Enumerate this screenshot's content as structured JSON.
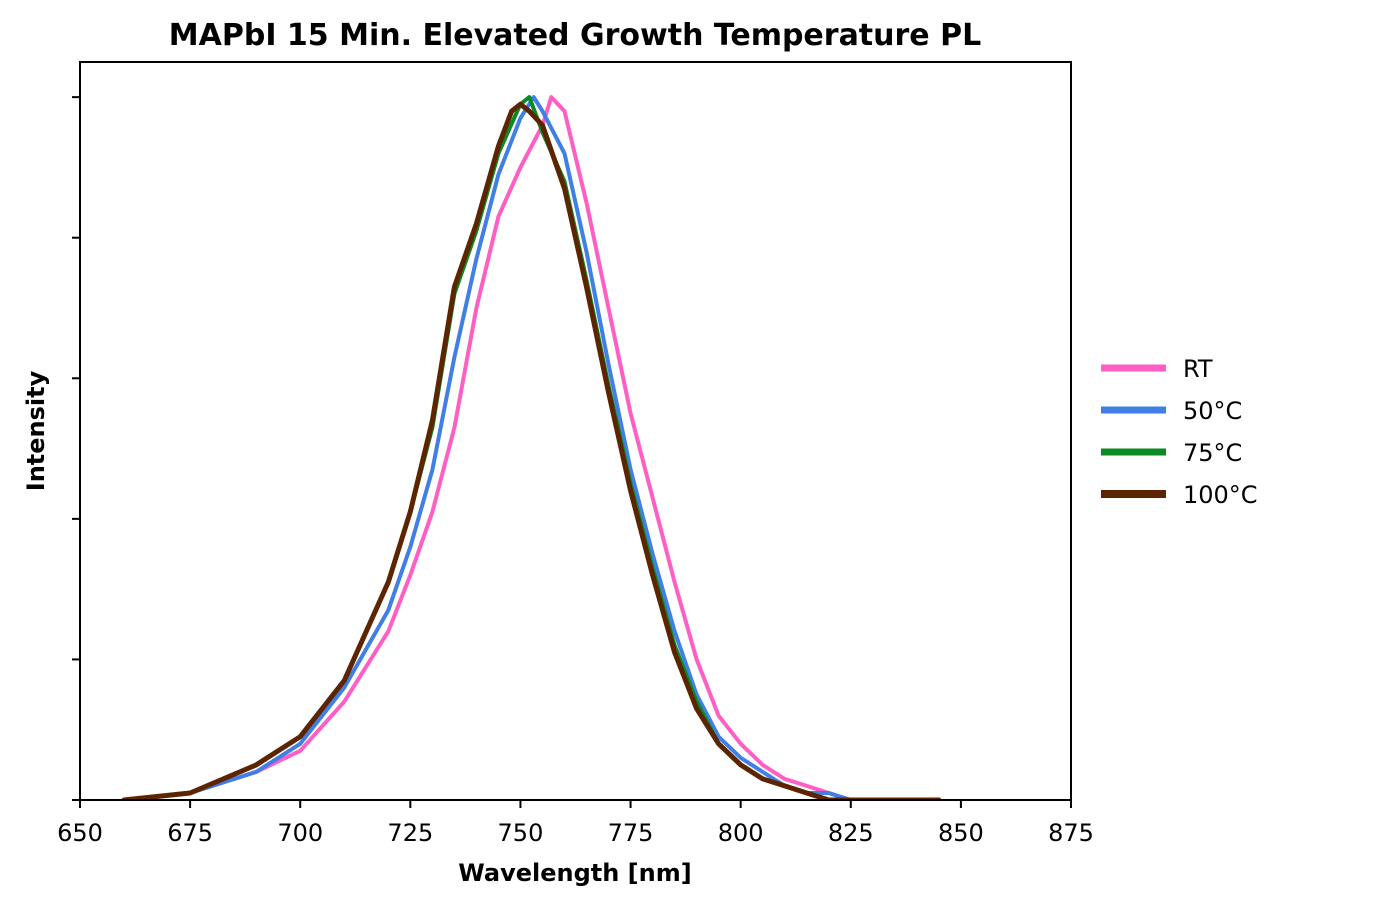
{
  "chart_data": {
    "type": "line",
    "title": "MAPbI 15 Min. Elevated Growth Temperature PL",
    "xlabel": "Wavelength [nm]",
    "ylabel": "Intensity",
    "xlim": [
      650,
      875
    ],
    "ylim": [
      0,
      1.05
    ],
    "x_ticks": [
      650,
      675,
      700,
      725,
      750,
      775,
      800,
      825,
      850,
      875
    ],
    "y_ticks": [
      0,
      0.2,
      0.4,
      0.6,
      0.8,
      1.0
    ],
    "y_tick_labels_shown": false,
    "grid": false,
    "legend": "outside-right",
    "series": [
      {
        "name": "RT",
        "color": "#ff5fc4",
        "x": [
          660,
          675,
          690,
          700,
          710,
          720,
          725,
          730,
          735,
          740,
          745,
          750,
          755,
          757,
          760,
          765,
          770,
          775,
          780,
          785,
          790,
          795,
          800,
          805,
          810,
          815,
          820,
          825,
          835,
          845
        ],
        "y": [
          0.0,
          0.01,
          0.04,
          0.07,
          0.14,
          0.24,
          0.32,
          0.41,
          0.53,
          0.7,
          0.83,
          0.9,
          0.96,
          1.0,
          0.98,
          0.85,
          0.7,
          0.55,
          0.43,
          0.31,
          0.2,
          0.12,
          0.08,
          0.05,
          0.03,
          0.02,
          0.01,
          0.0,
          0.0,
          0.0
        ]
      },
      {
        "name": "50°C",
        "color": "#3f7fe6",
        "x": [
          660,
          675,
          690,
          700,
          710,
          720,
          725,
          730,
          735,
          740,
          745,
          750,
          753,
          755,
          760,
          765,
          770,
          775,
          780,
          785,
          790,
          795,
          800,
          805,
          810,
          815,
          820,
          825,
          835,
          845
        ],
        "y": [
          0.0,
          0.01,
          0.04,
          0.08,
          0.16,
          0.27,
          0.36,
          0.47,
          0.63,
          0.77,
          0.89,
          0.97,
          1.0,
          0.98,
          0.92,
          0.78,
          0.62,
          0.47,
          0.35,
          0.24,
          0.15,
          0.09,
          0.06,
          0.04,
          0.02,
          0.01,
          0.01,
          0.0,
          0.0,
          0.0
        ]
      },
      {
        "name": "75°C",
        "color": "#0a8a22",
        "x": [
          660,
          675,
          690,
          700,
          710,
          720,
          725,
          730,
          735,
          740,
          745,
          750,
          752,
          755,
          760,
          765,
          770,
          775,
          780,
          785,
          790,
          795,
          800,
          805,
          810,
          815,
          820,
          825,
          835,
          845
        ],
        "y": [
          0.0,
          0.01,
          0.05,
          0.09,
          0.17,
          0.31,
          0.41,
          0.53,
          0.72,
          0.81,
          0.92,
          0.99,
          1.0,
          0.95,
          0.88,
          0.74,
          0.59,
          0.45,
          0.33,
          0.22,
          0.14,
          0.08,
          0.05,
          0.03,
          0.02,
          0.01,
          0.0,
          0.0,
          0.0,
          0.0
        ]
      },
      {
        "name": "100°C",
        "color": "#5c2500",
        "x": [
          660,
          675,
          690,
          700,
          710,
          720,
          725,
          730,
          735,
          740,
          745,
          748,
          750,
          752,
          755,
          760,
          765,
          770,
          775,
          780,
          785,
          790,
          795,
          800,
          805,
          810,
          815,
          820,
          825,
          845
        ],
        "y": [
          0.0,
          0.01,
          0.05,
          0.09,
          0.17,
          0.31,
          0.41,
          0.54,
          0.73,
          0.82,
          0.93,
          0.98,
          0.99,
          0.98,
          0.96,
          0.87,
          0.73,
          0.58,
          0.44,
          0.32,
          0.21,
          0.13,
          0.08,
          0.05,
          0.03,
          0.02,
          0.01,
          0.0,
          0.0,
          0.0
        ]
      }
    ]
  }
}
